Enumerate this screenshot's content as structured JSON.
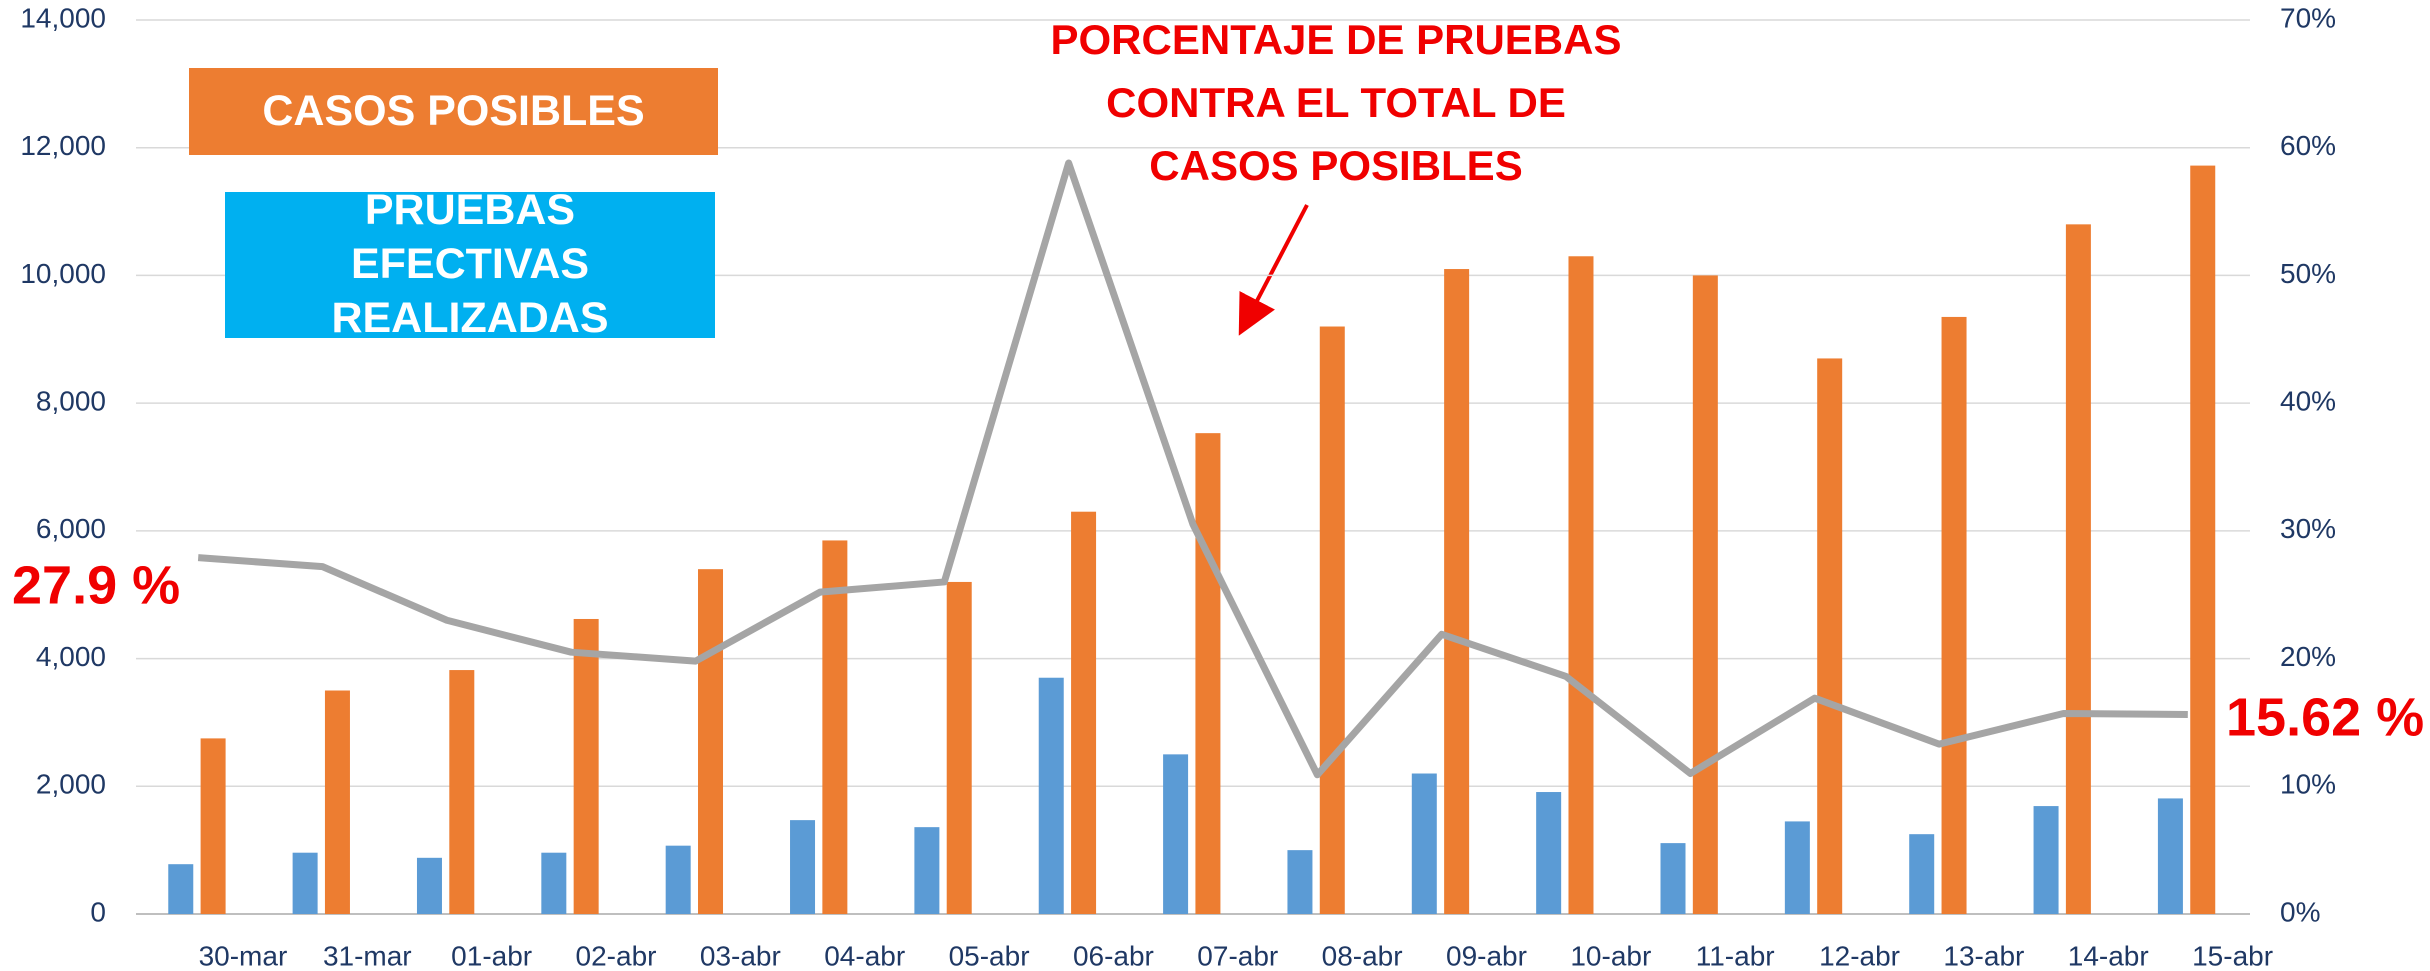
{
  "chart_data": {
    "type": "bar",
    "categories": [
      "30-mar",
      "31-mar",
      "01-abr",
      "02-abr",
      "03-abr",
      "04-abr",
      "05-abr",
      "06-abr",
      "07-abr",
      "08-abr",
      "09-abr",
      "10-abr",
      "11-abr",
      "12-abr",
      "13-abr",
      "14-abr",
      "15-abr"
    ],
    "series": [
      {
        "name": "PRUEBAS EFECTIVAS REALIZADAS",
        "color": "#5b9bd5",
        "values": [
          780,
          960,
          880,
          960,
          1070,
          1470,
          1360,
          3700,
          2500,
          1000,
          2200,
          1910,
          1110,
          1450,
          1250,
          1690,
          1810
        ]
      },
      {
        "name": "CASOS POSIBLES",
        "color": "#ed7d31",
        "values": [
          2750,
          3500,
          3820,
          4620,
          5400,
          5850,
          5200,
          6300,
          7530,
          9200,
          10100,
          10300,
          10000,
          8700,
          9350,
          10800,
          11720
        ]
      },
      {
        "name": "PORCENTAJE DE PRUEBAS CONTRA EL TOTAL DE CASOS POSIBLES",
        "type": "line",
        "axis": "y2",
        "color": "#a5a5a5",
        "values": [
          27.9,
          27.2,
          23.0,
          20.5,
          19.8,
          25.2,
          26.0,
          58.8,
          30.5,
          10.9,
          21.9,
          18.6,
          11.0,
          16.9,
          13.3,
          15.7,
          15.62
        ],
        "value_labels": [
          "27.9 %",
          null,
          null,
          null,
          null,
          null,
          null,
          null,
          null,
          null,
          null,
          null,
          null,
          null,
          null,
          null,
          "15.62 %"
        ]
      }
    ],
    "ylim": [
      0,
      14000
    ],
    "yticks": [
      0,
      {
        "value": 2000,
        "label": "2,000"
      },
      {
        "value": 4000,
        "label": "4,000"
      },
      {
        "value": 6000,
        "label": "6,000"
      },
      {
        "value": 8000,
        "label": "8,000"
      },
      {
        "value": 10000,
        "label": "10,000"
      },
      {
        "value": 12000,
        "label": "12,000"
      },
      {
        "value": 14000,
        "label": "14,000"
      }
    ],
    "y2lim": [
      0,
      70
    ],
    "y2ticks": [
      {
        "value": 0,
        "label": "0%"
      },
      {
        "value": 10,
        "label": "10%"
      },
      {
        "value": 20,
        "label": "20%"
      },
      {
        "value": 30,
        "label": "30%"
      },
      {
        "value": 40,
        "label": "40%"
      },
      {
        "value": 50,
        "label": "50%"
      },
      {
        "value": 60,
        "label": "60%"
      },
      {
        "value": 70,
        "label": "70%"
      }
    ],
    "grid": true
  }
}
